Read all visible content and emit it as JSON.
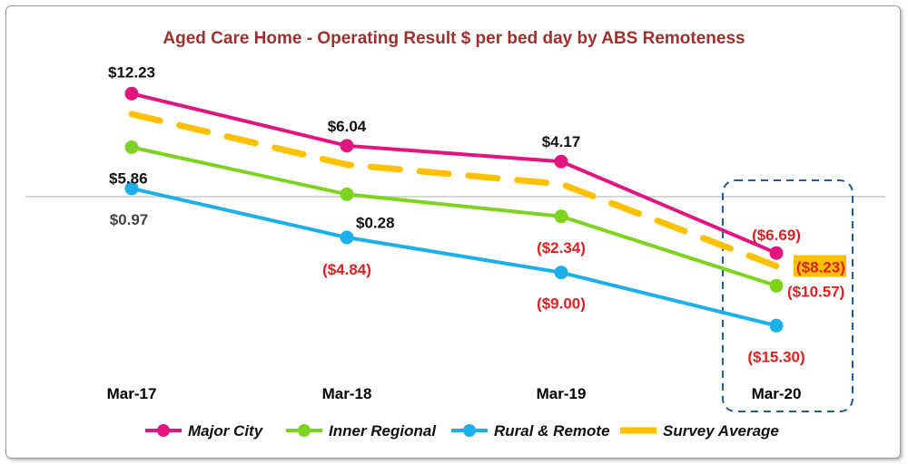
{
  "chart_data": {
    "type": "line",
    "title": "Aged Care Home - Operating Result $ per bed day by ABS Remoteness",
    "categories": [
      "Mar-17",
      "Mar-18",
      "Mar-19",
      "Mar-20"
    ],
    "ylim": [
      -17,
      14
    ],
    "grid": false,
    "legend_position": "bottom",
    "highlight_category": "Mar-20",
    "series": [
      {
        "name": "Major City",
        "color": "#e0157f",
        "dashed": false,
        "values": [
          12.23,
          6.04,
          4.17,
          -6.69
        ],
        "labels": [
          "$12.23",
          "$6.04",
          "$4.17",
          "($6.69)"
        ]
      },
      {
        "name": "Inner Regional",
        "color": "#7ed321",
        "dashed": false,
        "values": [
          5.86,
          0.28,
          -2.34,
          -10.57
        ],
        "labels": [
          "$5.86",
          "$0.28",
          "($2.34)",
          "($10.57)"
        ]
      },
      {
        "name": "Rural & Remote",
        "color": "#1bb0ea",
        "dashed": false,
        "values": [
          0.97,
          -4.84,
          -9.0,
          -15.3
        ],
        "labels": [
          "$0.97",
          "($4.84)",
          "($9.00)",
          "($15.30)"
        ]
      },
      {
        "name": "Survey Average",
        "color": "#ffc000",
        "dashed": true,
        "values": [
          9.8,
          3.8,
          1.5,
          -8.23
        ],
        "labels": [
          null,
          null,
          null,
          "($8.23)"
        ]
      }
    ],
    "colors": {
      "title": "#a0302e",
      "negative": "#e02020",
      "positive": "#111111",
      "highlight_box": "#1f5b99",
      "highlight_label_bg": "#ffc000"
    }
  }
}
